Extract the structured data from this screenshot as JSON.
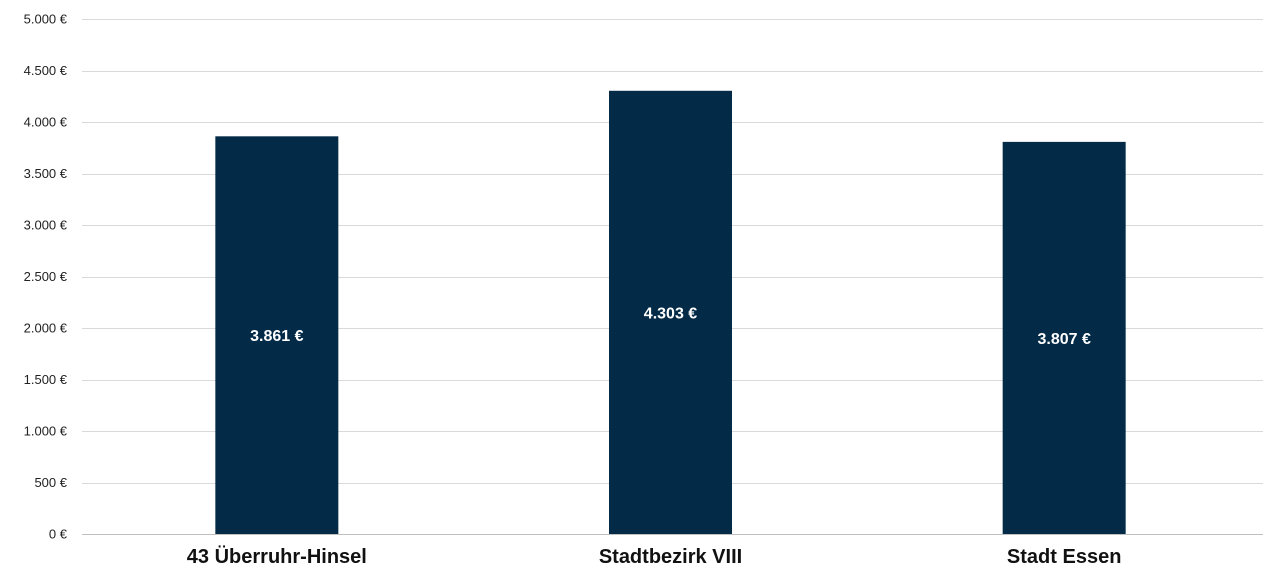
{
  "colors": {
    "bar": "#032a47",
    "gridline": "#d9d9d9",
    "data_label": "#ffffff"
  },
  "chart_data": {
    "type": "bar",
    "categories": [
      "43 Überruhr-Hinsel",
      "Stadtbezirk VIII",
      "Stadt Essen"
    ],
    "values": [
      3861,
      4303,
      3807
    ],
    "data_labels": [
      "3.861 €",
      "4.303 €",
      "3.807 €"
    ],
    "title": "",
    "xlabel": "",
    "ylabel": "",
    "ylim": [
      0,
      5000
    ],
    "yticks": [
      0,
      500,
      1000,
      1500,
      2000,
      2500,
      3000,
      3500,
      4000,
      4500,
      5000
    ],
    "ytick_labels": [
      "0 €",
      "500 €",
      "1.000 €",
      "1.500 €",
      "2.000 €",
      "2.500 €",
      "3.000 €",
      "3.500 €",
      "4.000 €",
      "4.500 €",
      "5.000 €"
    ],
    "grid": true,
    "legend": "none"
  }
}
